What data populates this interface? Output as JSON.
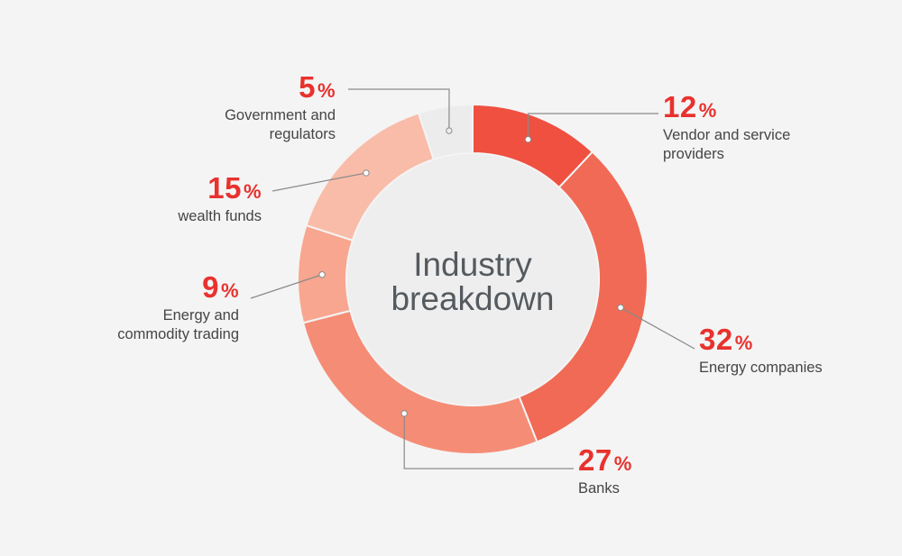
{
  "chart_data": {
    "type": "pie",
    "title": "Industry breakdown",
    "title_lines": [
      "Industry",
      "breakdown"
    ],
    "slices": [
      {
        "label_lines": [
          "Vendor and service",
          "providers"
        ],
        "value": 12,
        "color": "#ef5040"
      },
      {
        "label_lines": [
          "Energy companies"
        ],
        "value": 32,
        "color": "#f06a55"
      },
      {
        "label_lines": [
          "Banks"
        ],
        "value": 27,
        "color": "#f58d76"
      },
      {
        "label_lines": [
          "Energy and",
          "commodity trading"
        ],
        "value": 9,
        "color": "#f8a68f"
      },
      {
        "label_lines": [
          "wealth funds"
        ],
        "value": 15,
        "color": "#f9bca8"
      },
      {
        "label_lines": [
          "Government and",
          "regulators"
        ],
        "value": 5,
        "color": "#ececec"
      }
    ],
    "value_suffix": "%",
    "legend": "none",
    "grid": false
  }
}
